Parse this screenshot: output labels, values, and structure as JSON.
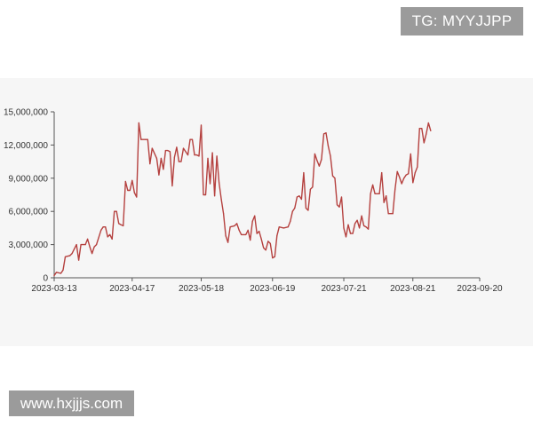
{
  "overlays": {
    "top_right_text": "TG: MYYJJPP",
    "bottom_left_text": "www.hxjjjs.com"
  },
  "colors": {
    "line": "#b5413f",
    "axis": "#555555",
    "panel_bg": "#f6f6f6"
  },
  "chart_data": {
    "type": "line",
    "title": "",
    "xlabel": "",
    "ylabel": "",
    "ylim": [
      0,
      15000000
    ],
    "y_ticks": [
      0,
      3000000,
      6000000,
      9000000,
      12000000,
      15000000
    ],
    "y_tick_labels": [
      "0",
      "3,000,000",
      "6,000,000",
      "9,000,000",
      "12,000,000",
      "15,000,000"
    ],
    "x_range": [
      "2023-03-13",
      "2023-09-20"
    ],
    "x_tick_labels": [
      "2023-03-13",
      "2023-04-17",
      "2023-05-18",
      "2023-06-19",
      "2023-07-21",
      "2023-08-21",
      "2023-09-20"
    ],
    "grid": false,
    "series": [
      {
        "values": [
          [
            "2023-03-13",
            200000
          ],
          [
            "2023-03-14",
            500000
          ],
          [
            "2023-03-16",
            400000
          ],
          [
            "2023-03-17",
            700000
          ],
          [
            "2023-03-18",
            1900000
          ],
          [
            "2023-03-20",
            2000000
          ],
          [
            "2023-03-21",
            2200000
          ],
          [
            "2023-03-22",
            2600000
          ],
          [
            "2023-03-23",
            3000000
          ],
          [
            "2023-03-24",
            1600000
          ],
          [
            "2023-03-25",
            3000000
          ],
          [
            "2023-03-27",
            3000000
          ],
          [
            "2023-03-28",
            3500000
          ],
          [
            "2023-03-29",
            2800000
          ],
          [
            "2023-03-30",
            2200000
          ],
          [
            "2023-03-31",
            2800000
          ],
          [
            "2023-04-01",
            3000000
          ],
          [
            "2023-04-03",
            4300000
          ],
          [
            "2023-04-04",
            4600000
          ],
          [
            "2023-04-05",
            4600000
          ],
          [
            "2023-04-06",
            3700000
          ],
          [
            "2023-04-07",
            3900000
          ],
          [
            "2023-04-08",
            3500000
          ],
          [
            "2023-04-09",
            6000000
          ],
          [
            "2023-04-10",
            6000000
          ],
          [
            "2023-04-11",
            4900000
          ],
          [
            "2023-04-12",
            4800000
          ],
          [
            "2023-04-13",
            4700000
          ],
          [
            "2023-04-14",
            8700000
          ],
          [
            "2023-04-15",
            7900000
          ],
          [
            "2023-04-16",
            7900000
          ],
          [
            "2023-04-17",
            8800000
          ],
          [
            "2023-04-18",
            7700000
          ],
          [
            "2023-04-19",
            7300000
          ],
          [
            "2023-04-20",
            14000000
          ],
          [
            "2023-04-21",
            12500000
          ],
          [
            "2023-04-23",
            12500000
          ],
          [
            "2023-04-24",
            12500000
          ],
          [
            "2023-04-25",
            10300000
          ],
          [
            "2023-04-26",
            11700000
          ],
          [
            "2023-04-28",
            10800000
          ],
          [
            "2023-04-29",
            9300000
          ],
          [
            "2023-04-30",
            10800000
          ],
          [
            "2023-05-01",
            9800000
          ],
          [
            "2023-05-02",
            11500000
          ],
          [
            "2023-05-03",
            11500000
          ],
          [
            "2023-05-04",
            11400000
          ],
          [
            "2023-05-05",
            8300000
          ],
          [
            "2023-05-06",
            10900000
          ],
          [
            "2023-05-07",
            11800000
          ],
          [
            "2023-05-08",
            10500000
          ],
          [
            "2023-05-09",
            10500000
          ],
          [
            "2023-05-10",
            11700000
          ],
          [
            "2023-05-11",
            11400000
          ],
          [
            "2023-05-12",
            11100000
          ],
          [
            "2023-05-13",
            12500000
          ],
          [
            "2023-05-14",
            12500000
          ],
          [
            "2023-05-15",
            11100000
          ],
          [
            "2023-05-16",
            11100000
          ],
          [
            "2023-05-17",
            11000000
          ],
          [
            "2023-05-18",
            13800000
          ],
          [
            "2023-05-19",
            7500000
          ],
          [
            "2023-05-20",
            7500000
          ],
          [
            "2023-05-21",
            10800000
          ],
          [
            "2023-05-22",
            8500000
          ],
          [
            "2023-05-23",
            11300000
          ],
          [
            "2023-05-24",
            7400000
          ],
          [
            "2023-05-25",
            11000000
          ],
          [
            "2023-05-26",
            8600000
          ],
          [
            "2023-05-27",
            7100000
          ],
          [
            "2023-05-28",
            5800000
          ],
          [
            "2023-05-29",
            3800000
          ],
          [
            "2023-05-30",
            3200000
          ],
          [
            "2023-05-31",
            4600000
          ],
          [
            "2023-06-02",
            4700000
          ],
          [
            "2023-06-03",
            4900000
          ],
          [
            "2023-06-04",
            4300000
          ],
          [
            "2023-06-05",
            3900000
          ],
          [
            "2023-06-07",
            3900000
          ],
          [
            "2023-06-08",
            4300000
          ],
          [
            "2023-06-09",
            3400000
          ],
          [
            "2023-06-10",
            5100000
          ],
          [
            "2023-06-11",
            5600000
          ],
          [
            "2023-06-12",
            4000000
          ],
          [
            "2023-06-13",
            4200000
          ],
          [
            "2023-06-14",
            3500000
          ],
          [
            "2023-06-15",
            2700000
          ],
          [
            "2023-06-16",
            2500000
          ],
          [
            "2023-06-17",
            3300000
          ],
          [
            "2023-06-18",
            3100000
          ],
          [
            "2023-06-19",
            1800000
          ],
          [
            "2023-06-20",
            1900000
          ],
          [
            "2023-06-21",
            3800000
          ],
          [
            "2023-06-22",
            4600000
          ],
          [
            "2023-06-24",
            4500000
          ],
          [
            "2023-06-26",
            4600000
          ],
          [
            "2023-06-27",
            5100000
          ],
          [
            "2023-06-28",
            6000000
          ],
          [
            "2023-06-29",
            6300000
          ],
          [
            "2023-06-30",
            7300000
          ],
          [
            "2023-07-01",
            7400000
          ],
          [
            "2023-07-02",
            7100000
          ],
          [
            "2023-07-03",
            9500000
          ],
          [
            "2023-07-04",
            6300000
          ],
          [
            "2023-07-05",
            6100000
          ],
          [
            "2023-07-06",
            8000000
          ],
          [
            "2023-07-07",
            8200000
          ],
          [
            "2023-07-08",
            11200000
          ],
          [
            "2023-07-09",
            10600000
          ],
          [
            "2023-07-10",
            10100000
          ],
          [
            "2023-07-11",
            10700000
          ],
          [
            "2023-07-12",
            13000000
          ],
          [
            "2023-07-13",
            13100000
          ],
          [
            "2023-07-14",
            11900000
          ],
          [
            "2023-07-15",
            11000000
          ],
          [
            "2023-07-16",
            9200000
          ],
          [
            "2023-07-17",
            9000000
          ],
          [
            "2023-07-18",
            6600000
          ],
          [
            "2023-07-19",
            6400000
          ],
          [
            "2023-07-20",
            7300000
          ],
          [
            "2023-07-21",
            4500000
          ],
          [
            "2023-07-22",
            3700000
          ],
          [
            "2023-07-23",
            4800000
          ],
          [
            "2023-07-24",
            4000000
          ],
          [
            "2023-07-25",
            4000000
          ],
          [
            "2023-07-26",
            4900000
          ],
          [
            "2023-07-27",
            5200000
          ],
          [
            "2023-07-28",
            4500000
          ],
          [
            "2023-07-29",
            5600000
          ],
          [
            "2023-07-30",
            4700000
          ],
          [
            "2023-07-31",
            4600000
          ],
          [
            "2023-08-01",
            4400000
          ],
          [
            "2023-08-02",
            7600000
          ],
          [
            "2023-08-03",
            8400000
          ],
          [
            "2023-08-04",
            7600000
          ],
          [
            "2023-08-06",
            7600000
          ],
          [
            "2023-08-07",
            9500000
          ],
          [
            "2023-08-08",
            6800000
          ],
          [
            "2023-08-09",
            7400000
          ],
          [
            "2023-08-10",
            5800000
          ],
          [
            "2023-08-12",
            5800000
          ],
          [
            "2023-08-13",
            8000000
          ],
          [
            "2023-08-14",
            9600000
          ],
          [
            "2023-08-15",
            9100000
          ],
          [
            "2023-08-16",
            8500000
          ],
          [
            "2023-08-17",
            9000000
          ],
          [
            "2023-08-18",
            9300000
          ],
          [
            "2023-08-19",
            9400000
          ],
          [
            "2023-08-20",
            11200000
          ],
          [
            "2023-08-21",
            8600000
          ],
          [
            "2023-08-22",
            9500000
          ],
          [
            "2023-08-23",
            10000000
          ],
          [
            "2023-08-24",
            13500000
          ],
          [
            "2023-08-25",
            13500000
          ],
          [
            "2023-08-26",
            12200000
          ],
          [
            "2023-08-27",
            13000000
          ],
          [
            "2023-08-28",
            14000000
          ],
          [
            "2023-08-29",
            13300000
          ]
        ]
      }
    ]
  }
}
